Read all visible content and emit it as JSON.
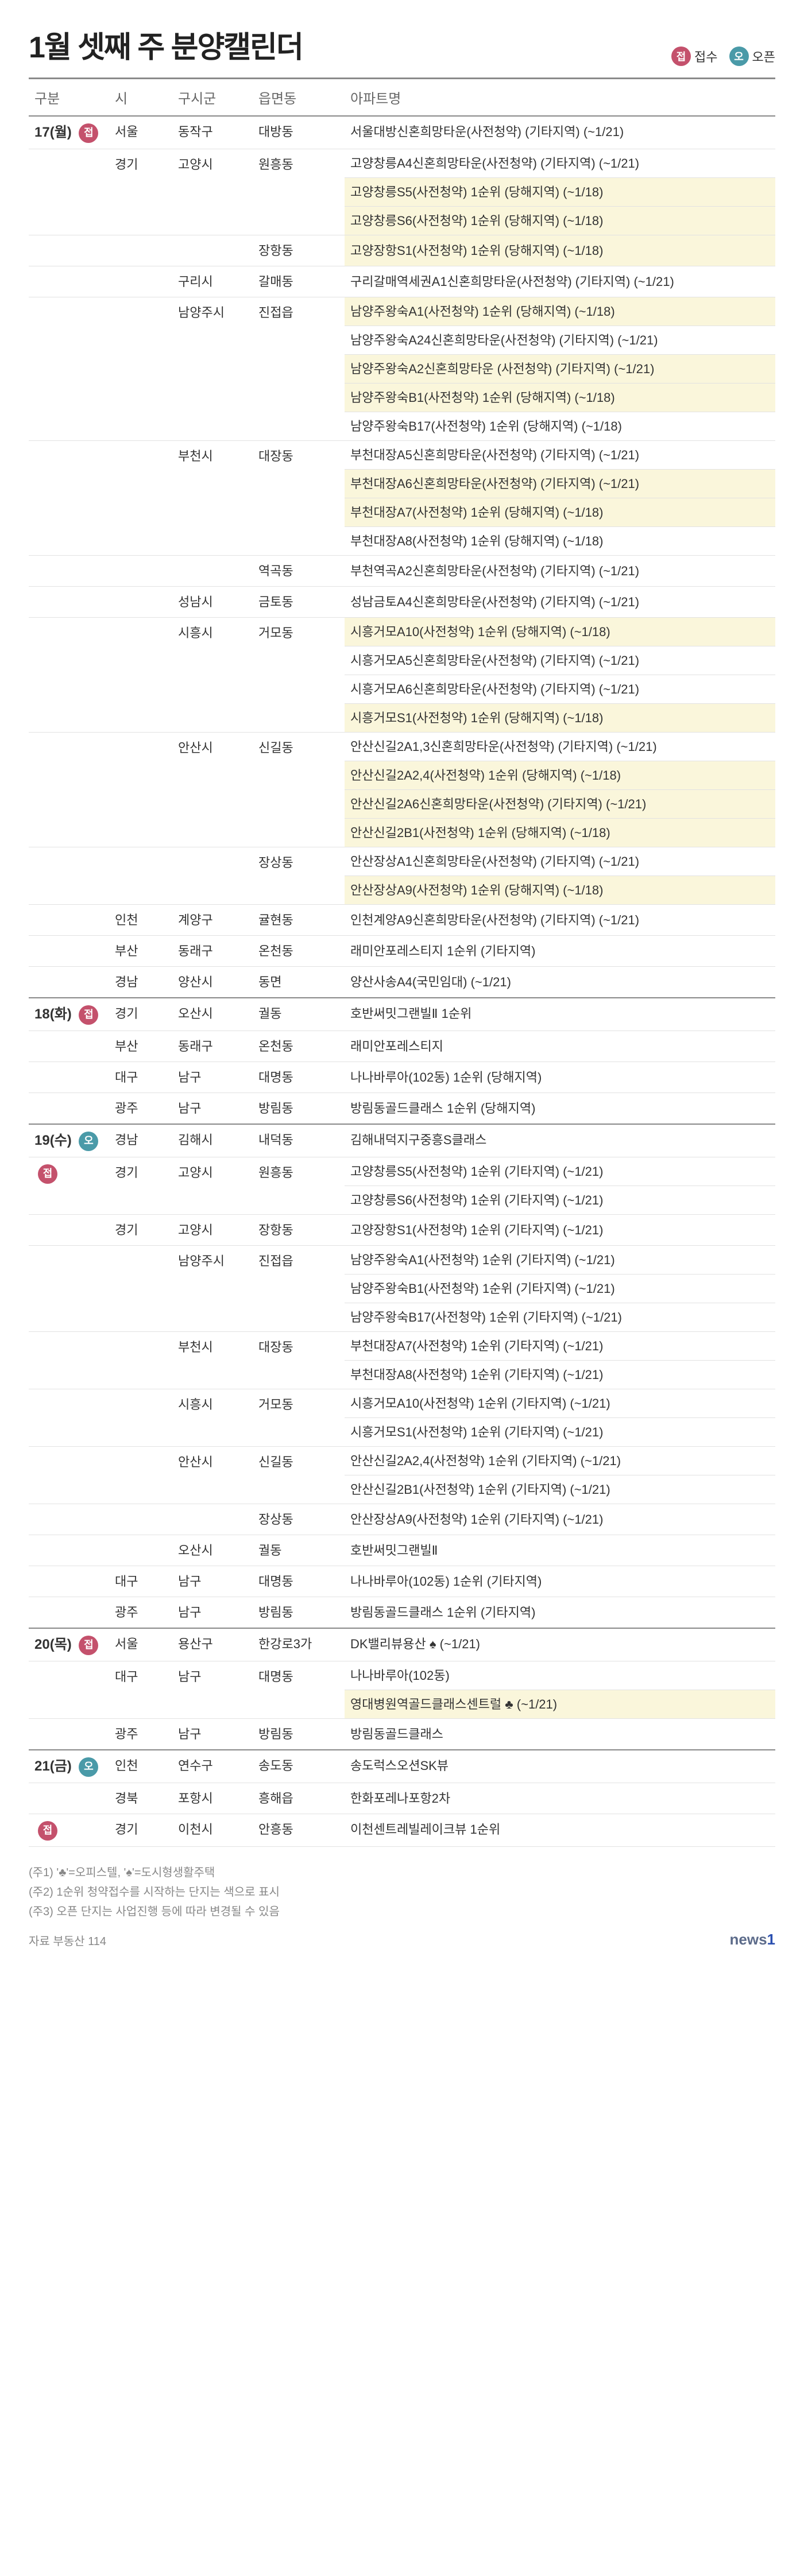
{
  "title": "1월 셋째 주 분양캘린더",
  "legend": {
    "jeop": "접수",
    "open": "오픈",
    "jeop_badge": "접",
    "open_badge": "오"
  },
  "headers": {
    "date": "구분",
    "si": "시",
    "gu": "구시군",
    "dong": "읍면동",
    "apt": "아파트명"
  },
  "colors": {
    "jeop_bg": "#c4516c",
    "open_bg": "#4a9aa8",
    "highlight_bg": "#faf6db",
    "border": "#e2e2e2",
    "header_border": "#8a8a8a"
  },
  "notes": [
    "(주1) '♣'=오피스텔, '♠'=도시형생활주택",
    "(주2) 1순위 청약접수를 시작하는 단지는 색으로 표시",
    "(주3) 오픈 단지는 사업진행 등에 따라 변경될 수 있음"
  ],
  "source_label": "자료",
  "source": "부동산 114",
  "logo": "news1",
  "rows": [
    {
      "day": "17(월)",
      "badge": "jeop",
      "si": "서울",
      "gu": "동작구",
      "dong": "대방동",
      "apts": [
        {
          "t": "서울대방신혼희망타운(사전청약) (기타지역) (~1/21)"
        }
      ]
    },
    {
      "si": "경기",
      "gu": "고양시",
      "dong": "원흥동",
      "apts": [
        {
          "t": "고양창릉A4신혼희망타운(사전청약) (기타지역) (~1/21)"
        },
        {
          "t": "고양창릉S5(사전청약) 1순위 (당해지역) (~1/18)",
          "hl": true
        },
        {
          "t": "고양창릉S6(사전청약) 1순위 (당해지역) (~1/18)",
          "hl": true
        }
      ]
    },
    {
      "dong": "장항동",
      "apts": [
        {
          "t": "고양장항S1(사전청약) 1순위 (당해지역) (~1/18)",
          "hl": true
        }
      ]
    },
    {
      "gu": "구리시",
      "dong": "갈매동",
      "apts": [
        {
          "t": "구리갈매역세권A1신혼희망타운(사전청약) (기타지역) (~1/21)"
        }
      ]
    },
    {
      "gu": "남양주시",
      "dong": "진접읍",
      "apts": [
        {
          "t": "남양주왕숙A1(사전청약) 1순위 (당해지역) (~1/18)",
          "hl": true
        },
        {
          "t": "남양주왕숙A24신혼희망타운(사전청약) (기타지역) (~1/21)"
        },
        {
          "t": "남양주왕숙A2신혼희망타운 (사전청약) (기타지역) (~1/21)",
          "hl": true
        },
        {
          "t": "남양주왕숙B1(사전청약) 1순위 (당해지역) (~1/18)",
          "hl": true
        },
        {
          "t": "남양주왕숙B17(사전청약) 1순위 (당해지역) (~1/18)"
        }
      ]
    },
    {
      "gu": "부천시",
      "dong": "대장동",
      "apts": [
        {
          "t": "부천대장A5신혼희망타운(사전청약) (기타지역) (~1/21)"
        },
        {
          "t": "부천대장A6신혼희망타운(사전청약) (기타지역) (~1/21)",
          "hl": true
        },
        {
          "t": "부천대장A7(사전청약) 1순위 (당해지역) (~1/18)",
          "hl": true
        },
        {
          "t": "부천대장A8(사전청약) 1순위 (당해지역) (~1/18)"
        }
      ]
    },
    {
      "dong": "역곡동",
      "apts": [
        {
          "t": "부천역곡A2신혼희망타운(사전청약) (기타지역) (~1/21)"
        }
      ]
    },
    {
      "gu": "성남시",
      "dong": "금토동",
      "apts": [
        {
          "t": "성남금토A4신혼희망타운(사전청약) (기타지역) (~1/21)"
        }
      ]
    },
    {
      "gu": "시흥시",
      "dong": "거모동",
      "apts": [
        {
          "t": "시흥거모A10(사전청약) 1순위 (당해지역) (~1/18)",
          "hl": true
        },
        {
          "t": "시흥거모A5신혼희망타운(사전청약) (기타지역) (~1/21)"
        },
        {
          "t": "시흥거모A6신혼희망타운(사전청약) (기타지역) (~1/21)"
        },
        {
          "t": "시흥거모S1(사전청약) 1순위 (당해지역) (~1/18)",
          "hl": true
        }
      ]
    },
    {
      "gu": "안산시",
      "dong": "신길동",
      "apts": [
        {
          "t": "안산신길2A1,3신혼희망타운(사전청약) (기타지역) (~1/21)"
        },
        {
          "t": "안산신길2A2,4(사전청약) 1순위 (당해지역) (~1/18)",
          "hl": true
        },
        {
          "t": "안산신길2A6신혼희망타운(사전청약) (기타지역) (~1/21)",
          "hl": true
        },
        {
          "t": "안산신길2B1(사전청약) 1순위 (당해지역) (~1/18)",
          "hl": true
        }
      ]
    },
    {
      "dong": "장상동",
      "apts": [
        {
          "t": "안산장상A1신혼희망타운(사전청약) (기타지역) (~1/21)"
        },
        {
          "t": "안산장상A9(사전청약) 1순위 (당해지역) (~1/18)",
          "hl": true
        }
      ]
    },
    {
      "si": "인천",
      "gu": "계양구",
      "dong": "귤현동",
      "apts": [
        {
          "t": "인천계양A9신혼희망타운(사전청약) (기타지역) (~1/21)"
        }
      ]
    },
    {
      "si": "부산",
      "gu": "동래구",
      "dong": "온천동",
      "apts": [
        {
          "t": "래미안포레스티지 1순위 (기타지역)"
        }
      ]
    },
    {
      "si": "경남",
      "gu": "양산시",
      "dong": "동면",
      "apts": [
        {
          "t": "양산사송A4(국민임대) (~1/21)"
        }
      ]
    },
    {
      "day": "18(화)",
      "badge": "jeop",
      "si": "경기",
      "gu": "오산시",
      "dong": "궐동",
      "apts": [
        {
          "t": "호반써밋그랜빌Ⅱ 1순위"
        }
      ]
    },
    {
      "si": "부산",
      "gu": "동래구",
      "dong": "온천동",
      "apts": [
        {
          "t": "래미안포레스티지"
        }
      ]
    },
    {
      "si": "대구",
      "gu": "남구",
      "dong": "대명동",
      "apts": [
        {
          "t": "나나바루아(102동) 1순위 (당해지역)"
        }
      ]
    },
    {
      "si": "광주",
      "gu": "남구",
      "dong": "방림동",
      "apts": [
        {
          "t": "방림동골드클래스 1순위 (당해지역)"
        }
      ]
    },
    {
      "day": "19(수)",
      "badge": "open",
      "si": "경남",
      "gu": "김해시",
      "dong": "내덕동",
      "apts": [
        {
          "t": "김해내덕지구중흥S클래스"
        }
      ]
    },
    {
      "badge": "jeop",
      "si": "경기",
      "gu": "고양시",
      "dong": "원흥동",
      "apts": [
        {
          "t": "고양창릉S5(사전청약) 1순위 (기타지역) (~1/21)"
        },
        {
          "t": "고양창릉S6(사전청약) 1순위 (기타지역) (~1/21)"
        }
      ]
    },
    {
      "si": "경기",
      "gu": "고양시",
      "dong": "장항동",
      "apts": [
        {
          "t": "고양장항S1(사전청약) 1순위 (기타지역) (~1/21)"
        }
      ]
    },
    {
      "gu": "남양주시",
      "dong": "진접읍",
      "apts": [
        {
          "t": "남양주왕숙A1(사전청약) 1순위 (기타지역) (~1/21)"
        },
        {
          "t": "남양주왕숙B1(사전청약) 1순위 (기타지역) (~1/21)"
        },
        {
          "t": "남양주왕숙B17(사전청약) 1순위 (기타지역) (~1/21)"
        }
      ]
    },
    {
      "gu": "부천시",
      "dong": "대장동",
      "apts": [
        {
          "t": "부천대장A7(사전청약) 1순위 (기타지역) (~1/21)"
        },
        {
          "t": "부천대장A8(사전청약) 1순위 (기타지역) (~1/21)"
        }
      ]
    },
    {
      "gu": "시흥시",
      "dong": "거모동",
      "apts": [
        {
          "t": "시흥거모A10(사전청약) 1순위 (기타지역) (~1/21)"
        },
        {
          "t": "시흥거모S1(사전청약) 1순위 (기타지역) (~1/21)"
        }
      ]
    },
    {
      "gu": "안산시",
      "dong": "신길동",
      "apts": [
        {
          "t": "안산신길2A2,4(사전청약) 1순위 (기타지역) (~1/21)"
        },
        {
          "t": "안산신길2B1(사전청약) 1순위 (기타지역) (~1/21)"
        }
      ]
    },
    {
      "dong": "장상동",
      "apts": [
        {
          "t": "안산장상A9(사전청약) 1순위 (기타지역) (~1/21)"
        }
      ]
    },
    {
      "gu": "오산시",
      "dong": "궐동",
      "apts": [
        {
          "t": "호반써밋그랜빌Ⅱ"
        }
      ]
    },
    {
      "si": "대구",
      "gu": "남구",
      "dong": "대명동",
      "apts": [
        {
          "t": "나나바루아(102동) 1순위 (기타지역)"
        }
      ]
    },
    {
      "si": "광주",
      "gu": "남구",
      "dong": "방림동",
      "apts": [
        {
          "t": "방림동골드클래스 1순위 (기타지역)"
        }
      ]
    },
    {
      "day": "20(목)",
      "badge": "jeop",
      "si": "서울",
      "gu": "용산구",
      "dong": "한강로3가",
      "apts": [
        {
          "t": "DK밸리뷰용산 ♠ (~1/21)"
        }
      ]
    },
    {
      "si": "대구",
      "gu": "남구",
      "dong": "대명동",
      "apts": [
        {
          "t": "나나바루아(102동)"
        },
        {
          "t": "영대병원역골드클래스센트럴 ♣ (~1/21)",
          "hl": true
        }
      ]
    },
    {
      "si": "광주",
      "gu": "남구",
      "dong": "방림동",
      "apts": [
        {
          "t": "방림동골드클래스"
        }
      ]
    },
    {
      "day": "21(금)",
      "badge": "open",
      "si": "인천",
      "gu": "연수구",
      "dong": "송도동",
      "apts": [
        {
          "t": "송도럭스오션SK뷰"
        }
      ]
    },
    {
      "si": "경북",
      "gu": "포항시",
      "dong": "흥해읍",
      "apts": [
        {
          "t": "한화포레나포항2차"
        }
      ]
    },
    {
      "badge": "jeop",
      "si": "경기",
      "gu": "이천시",
      "dong": "안흥동",
      "apts": [
        {
          "t": "이천센트레빌레이크뷰 1순위"
        }
      ]
    }
  ]
}
